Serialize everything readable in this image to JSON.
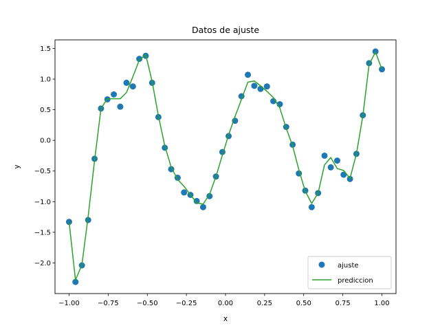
{
  "chart_data": {
    "type": "scatter",
    "title": "Datos de ajuste",
    "xlabel": "x",
    "ylabel": "y",
    "xlim": [
      -1.09,
      1.09
    ],
    "ylim": [
      -2.5,
      1.64
    ],
    "xticks": [
      -1.0,
      -0.75,
      -0.5,
      -0.25,
      0.0,
      0.25,
      0.5,
      0.75,
      1.0
    ],
    "xtick_labels": [
      "−1.00",
      "−0.75",
      "−0.50",
      "−0.25",
      "0.00",
      "0.25",
      "0.50",
      "0.75",
      "1.00"
    ],
    "yticks": [
      -2.0,
      -1.5,
      -1.0,
      -0.5,
      0.0,
      0.5,
      1.0,
      1.5
    ],
    "ytick_labels": [
      "−2.0",
      "−1.5",
      "−1.0",
      "−0.5",
      "0.0",
      "0.5",
      "1.0",
      "1.5"
    ],
    "grid": false,
    "legend_position": "bottom-right",
    "series": [
      {
        "name": "ajuste",
        "kind": "scatter",
        "color": "#1f77b4",
        "x": [
          -1.0,
          -0.959,
          -0.918,
          -0.878,
          -0.837,
          -0.796,
          -0.755,
          -0.714,
          -0.673,
          -0.633,
          -0.592,
          -0.551,
          -0.51,
          -0.469,
          -0.429,
          -0.388,
          -0.347,
          -0.306,
          -0.265,
          -0.224,
          -0.184,
          -0.143,
          -0.102,
          -0.061,
          -0.02,
          0.02,
          0.061,
          0.102,
          0.143,
          0.184,
          0.224,
          0.265,
          0.306,
          0.347,
          0.388,
          0.429,
          0.469,
          0.51,
          0.551,
          0.592,
          0.633,
          0.673,
          0.714,
          0.755,
          0.796,
          0.837,
          0.878,
          0.918,
          0.959,
          1.0
        ],
        "y": [
          -1.33,
          -2.31,
          -2.04,
          -1.3,
          -0.3,
          0.52,
          0.67,
          0.75,
          0.55,
          0.94,
          0.88,
          1.33,
          1.38,
          0.94,
          0.38,
          -0.12,
          -0.47,
          -0.61,
          -0.85,
          -0.89,
          -0.99,
          -1.09,
          -0.91,
          -0.59,
          -0.19,
          0.07,
          0.32,
          0.72,
          1.07,
          0.89,
          0.84,
          0.88,
          0.64,
          0.59,
          0.22,
          -0.07,
          -0.54,
          -0.82,
          -1.09,
          -0.86,
          -0.25,
          -0.44,
          -0.33,
          -0.56,
          -0.63,
          -0.22,
          0.41,
          1.26,
          1.45,
          1.16
        ]
      },
      {
        "name": "prediccion",
        "kind": "line",
        "color": "#2ca02c",
        "x": [
          -1.0,
          -0.959,
          -0.918,
          -0.878,
          -0.837,
          -0.796,
          -0.755,
          -0.714,
          -0.673,
          -0.633,
          -0.592,
          -0.551,
          -0.51,
          -0.469,
          -0.429,
          -0.388,
          -0.347,
          -0.306,
          -0.265,
          -0.224,
          -0.184,
          -0.143,
          -0.102,
          -0.061,
          -0.02,
          0.02,
          0.061,
          0.102,
          0.143,
          0.184,
          0.224,
          0.265,
          0.306,
          0.347,
          0.388,
          0.429,
          0.469,
          0.51,
          0.551,
          0.592,
          0.633,
          0.673,
          0.714,
          0.755,
          0.796,
          0.837,
          0.878,
          0.918,
          0.959,
          1.0
        ],
        "y": [
          -1.33,
          -2.28,
          -2.03,
          -1.24,
          -0.33,
          0.52,
          0.68,
          0.68,
          0.68,
          0.78,
          1.04,
          1.31,
          1.4,
          0.96,
          0.4,
          -0.09,
          -0.44,
          -0.64,
          -0.75,
          -0.89,
          -1.02,
          -1.04,
          -0.88,
          -0.59,
          -0.24,
          0.09,
          0.39,
          0.67,
          0.95,
          0.97,
          0.89,
          0.8,
          0.7,
          0.53,
          0.2,
          -0.09,
          -0.48,
          -0.83,
          -1.03,
          -0.86,
          -0.4,
          -0.28,
          -0.46,
          -0.49,
          -0.62,
          -0.22,
          0.4,
          1.24,
          1.44,
          1.16
        ]
      }
    ]
  }
}
